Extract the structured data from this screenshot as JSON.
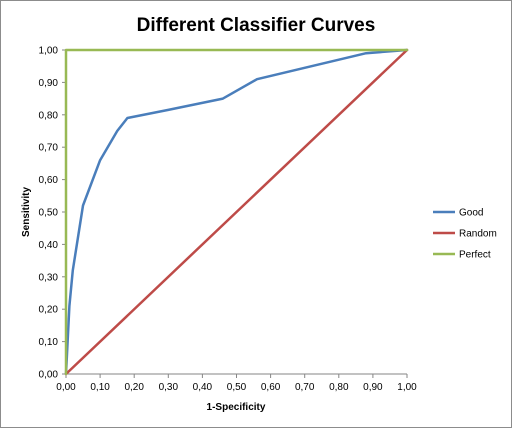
{
  "chart_data": {
    "type": "line",
    "title": "Different Classifier Curves",
    "xlabel": "1-Specificity",
    "ylabel": "Sensitivity",
    "xlim": [
      0,
      1
    ],
    "ylim": [
      0,
      1
    ],
    "x_ticks": [
      "0,00",
      "0,10",
      "0,20",
      "0,30",
      "0,40",
      "0,50",
      "0,60",
      "0,70",
      "0,80",
      "0,90",
      "1,00"
    ],
    "y_ticks": [
      "0,00",
      "0,10",
      "0,20",
      "0,30",
      "0,40",
      "0,50",
      "0,60",
      "0,70",
      "0,80",
      "0,90",
      "1,00"
    ],
    "grid": false,
    "legend_position": "right",
    "series": [
      {
        "name": "Good",
        "color": "#4a7ebb",
        "x": [
          0,
          0.01,
          0.02,
          0.05,
          0.1,
          0.15,
          0.18,
          0.3,
          0.46,
          0.56,
          0.7,
          0.88,
          1.0
        ],
        "y": [
          0,
          0.21,
          0.32,
          0.52,
          0.66,
          0.75,
          0.79,
          0.815,
          0.85,
          0.91,
          0.945,
          0.99,
          1.0
        ]
      },
      {
        "name": "Random",
        "color": "#be4b48",
        "x": [
          0,
          1
        ],
        "y": [
          0,
          1
        ]
      },
      {
        "name": "Perfect",
        "color": "#98b954",
        "x": [
          0,
          0,
          1
        ],
        "y": [
          0,
          1,
          1
        ]
      }
    ]
  }
}
